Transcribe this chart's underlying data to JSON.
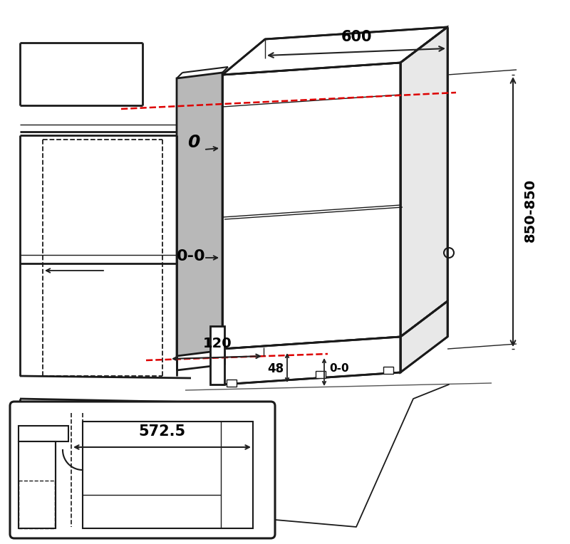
{
  "bg_color": "#ffffff",
  "line_color": "#1a1a1a",
  "gray_fill": "#b8b8b8",
  "red_dash_color": "#dd0000",
  "dim_color": "#222222",
  "labels": {
    "top_dim": "600",
    "height_dim": "850-850",
    "dim_120": "120",
    "dim_48": "48",
    "dim_0_top": "0",
    "dim_00_mid": "0-0",
    "dim_00_bot": "0-0",
    "dim_572": "572.5"
  },
  "figsize": [
    8.0,
    7.64
  ],
  "dpi": 100
}
